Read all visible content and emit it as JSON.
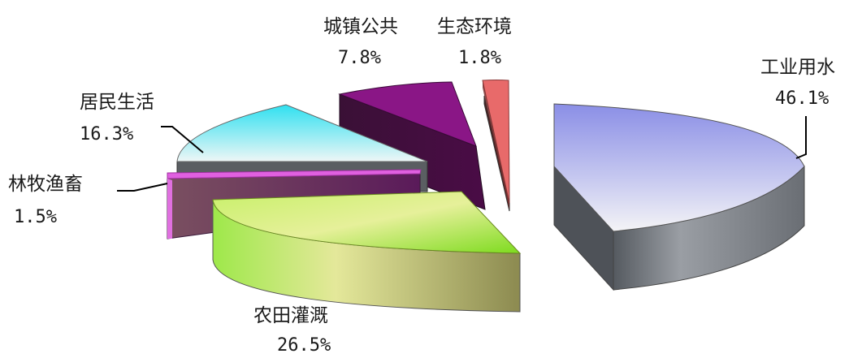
{
  "chart_data": {
    "type": "pie",
    "style": "3d-exploded",
    "title": "",
    "slices": [
      {
        "label": "工业用水",
        "value": 46.1,
        "display": "46.1%",
        "color": "#8b8fe8"
      },
      {
        "label": "农田灌溉",
        "value": 26.5,
        "display": "26.5%",
        "color": "#7ed321"
      },
      {
        "label": "林牧渔畜",
        "value": 1.5,
        "display": "1.5%",
        "color": "#e060e0"
      },
      {
        "label": "居民生活",
        "value": 16.3,
        "display": "16.3%",
        "color": "#30e0f0"
      },
      {
        "label": "城镇公共",
        "value": 7.8,
        "display": "7.8%",
        "color": "#8a1a8a"
      },
      {
        "label": "生态环境",
        "value": 1.8,
        "display": "1.8%",
        "color": "#f07070"
      }
    ],
    "legend": "none"
  }
}
